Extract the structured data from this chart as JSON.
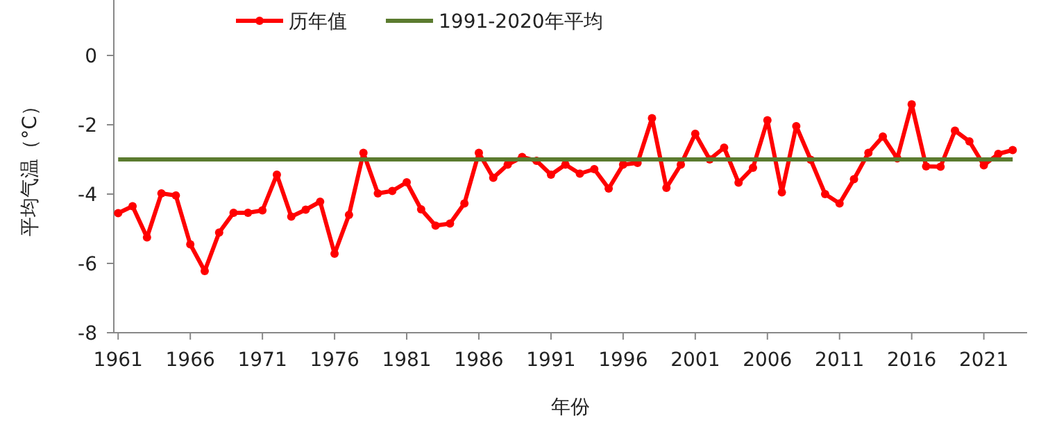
{
  "chart_data": {
    "type": "line",
    "xlabel": "年份",
    "ylabel": "平均气温（°C）",
    "xlim": [
      1960.7,
      2024
    ],
    "ylim": [
      -8,
      1.6
    ],
    "xticks": [
      1961,
      1966,
      1971,
      1976,
      1981,
      1986,
      1991,
      1996,
      2001,
      2006,
      2011,
      2016,
      2021
    ],
    "yticks": [
      -8,
      -6,
      -4,
      -2,
      0
    ],
    "grid": false,
    "legend": "top",
    "x": [
      1961,
      1962,
      1963,
      1964,
      1965,
      1966,
      1967,
      1968,
      1969,
      1970,
      1971,
      1972,
      1973,
      1974,
      1975,
      1976,
      1977,
      1978,
      1979,
      1980,
      1981,
      1982,
      1983,
      1984,
      1985,
      1986,
      1987,
      1988,
      1989,
      1990,
      1991,
      1992,
      1993,
      1994,
      1995,
      1996,
      1997,
      1998,
      1999,
      2000,
      2001,
      2002,
      2003,
      2004,
      2005,
      2006,
      2007,
      2008,
      2009,
      2010,
      2011,
      2012,
      2013,
      2014,
      2015,
      2016,
      2017,
      2018,
      2019,
      2020,
      2021,
      2022,
      2023
    ],
    "series": [
      {
        "name": "历年值",
        "color": "#ff0000",
        "marker": "circle",
        "values": [
          -4.55,
          -4.35,
          -5.25,
          -3.98,
          -4.04,
          -5.45,
          -6.22,
          -5.11,
          -4.54,
          -4.54,
          -4.47,
          -3.44,
          -4.65,
          -4.45,
          -4.22,
          -5.72,
          -4.6,
          -2.81,
          -3.98,
          -3.91,
          -3.66,
          -4.44,
          -4.91,
          -4.85,
          -4.27,
          -2.81,
          -3.53,
          -3.15,
          -2.93,
          -3.04,
          -3.44,
          -3.15,
          -3.41,
          -3.28,
          -3.84,
          -3.15,
          -3.1,
          -1.81,
          -3.82,
          -3.15,
          -2.26,
          -3.0,
          -2.66,
          -3.67,
          -3.24,
          -1.87,
          -3.95,
          -2.04,
          -3.01,
          -4.0,
          -4.27,
          -3.57,
          -2.81,
          -2.34,
          -2.97,
          -1.41,
          -3.2,
          -3.21,
          -2.17,
          -2.48,
          -3.17,
          -2.84,
          -2.73
        ]
      },
      {
        "name": "1991-2020年平均",
        "color": "#5b7b2f",
        "marker": "none",
        "x": [
          1961,
          2023
        ],
        "values": [
          -3.0,
          -3.0
        ]
      }
    ]
  }
}
